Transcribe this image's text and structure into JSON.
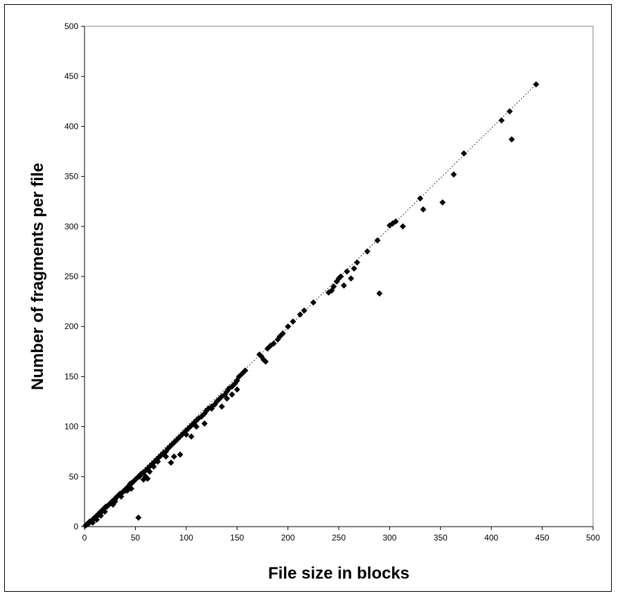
{
  "chart_data": {
    "type": "scatter",
    "title": "",
    "xlabel": "File size in blocks",
    "ylabel": "Number of fragments per file",
    "xlim": [
      0,
      500
    ],
    "ylim": [
      0,
      500
    ],
    "xticks": [
      0,
      50,
      100,
      150,
      200,
      250,
      300,
      350,
      400,
      450,
      500
    ],
    "yticks": [
      0,
      50,
      100,
      150,
      200,
      250,
      300,
      350,
      400,
      450,
      500
    ],
    "grid": false,
    "legend": "none",
    "marker_color": "#000000",
    "trendline": {
      "style": "dotted",
      "from": [
        0,
        0
      ],
      "to": [
        444,
        442
      ]
    },
    "points": [
      [
        1,
        1
      ],
      [
        2,
        2
      ],
      [
        3,
        3
      ],
      [
        4,
        3
      ],
      [
        5,
        5
      ],
      [
        6,
        5
      ],
      [
        7,
        6
      ],
      [
        8,
        7
      ],
      [
        9,
        8
      ],
      [
        10,
        9
      ],
      [
        11,
        10
      ],
      [
        12,
        11
      ],
      [
        13,
        11
      ],
      [
        14,
        12
      ],
      [
        15,
        14
      ],
      [
        16,
        15
      ],
      [
        17,
        15
      ],
      [
        18,
        17
      ],
      [
        19,
        18
      ],
      [
        20,
        19
      ],
      [
        21,
        20
      ],
      [
        22,
        20
      ],
      [
        24,
        22
      ],
      [
        25,
        23
      ],
      [
        26,
        24
      ],
      [
        27,
        25
      ],
      [
        28,
        26
      ],
      [
        30,
        27
      ],
      [
        31,
        29
      ],
      [
        32,
        30
      ],
      [
        34,
        32
      ],
      [
        35,
        33
      ],
      [
        37,
        34
      ],
      [
        38,
        35
      ],
      [
        40,
        37
      ],
      [
        41,
        38
      ],
      [
        43,
        40
      ],
      [
        44,
        41
      ],
      [
        45,
        43
      ],
      [
        47,
        44
      ],
      [
        48,
        45
      ],
      [
        50,
        47
      ],
      [
        52,
        49
      ],
      [
        54,
        50
      ],
      [
        55,
        52
      ],
      [
        56,
        53
      ],
      [
        58,
        54
      ],
      [
        60,
        56
      ],
      [
        62,
        58
      ],
      [
        64,
        60
      ],
      [
        66,
        62
      ],
      [
        68,
        64
      ],
      [
        70,
        66
      ],
      [
        72,
        68
      ],
      [
        74,
        70
      ],
      [
        76,
        72
      ],
      [
        78,
        74
      ],
      [
        80,
        75
      ],
      [
        82,
        78
      ],
      [
        84,
        80
      ],
      [
        86,
        82
      ],
      [
        88,
        84
      ],
      [
        90,
        86
      ],
      [
        92,
        88
      ],
      [
        94,
        90
      ],
      [
        96,
        92
      ],
      [
        98,
        94
      ],
      [
        100,
        96
      ],
      [
        102,
        98
      ],
      [
        104,
        100
      ],
      [
        106,
        102
      ],
      [
        108,
        104
      ],
      [
        110,
        106
      ],
      [
        112,
        108
      ],
      [
        115,
        110
      ],
      [
        118,
        113
      ],
      [
        120,
        116
      ],
      [
        122,
        118
      ],
      [
        125,
        120
      ],
      [
        128,
        122
      ],
      [
        130,
        125
      ],
      [
        132,
        127
      ],
      [
        135,
        130
      ],
      [
        138,
        132
      ],
      [
        140,
        135
      ],
      [
        142,
        138
      ],
      [
        145,
        140
      ],
      [
        148,
        143
      ],
      [
        150,
        146
      ],
      [
        152,
        150
      ],
      [
        155,
        153
      ],
      [
        158,
        156
      ],
      [
        172,
        172
      ],
      [
        174,
        170
      ],
      [
        176,
        167
      ],
      [
        178,
        165
      ],
      [
        180,
        178
      ],
      [
        183,
        181
      ],
      [
        186,
        183
      ],
      [
        190,
        187
      ],
      [
        192,
        190
      ],
      [
        195,
        193
      ],
      [
        200,
        200
      ],
      [
        205,
        205
      ],
      [
        212,
        212
      ],
      [
        216,
        216
      ],
      [
        225,
        224
      ],
      [
        240,
        234
      ],
      [
        243,
        236
      ],
      [
        245,
        240
      ],
      [
        248,
        245
      ],
      [
        250,
        248
      ],
      [
        252,
        250
      ],
      [
        255,
        241
      ],
      [
        258,
        255
      ],
      [
        262,
        248
      ],
      [
        265,
        258
      ],
      [
        268,
        264
      ],
      [
        278,
        275
      ],
      [
        288,
        286
      ],
      [
        290,
        233
      ],
      [
        300,
        301
      ],
      [
        303,
        303
      ],
      [
        306,
        305
      ],
      [
        313,
        300
      ],
      [
        330,
        328
      ],
      [
        333,
        317
      ],
      [
        352,
        324
      ],
      [
        363,
        352
      ],
      [
        373,
        373
      ],
      [
        410,
        406
      ],
      [
        418,
        415
      ],
      [
        420,
        387
      ],
      [
        444,
        442
      ],
      [
        53,
        9
      ],
      [
        58,
        47
      ],
      [
        60,
        50
      ],
      [
        62,
        48
      ],
      [
        64,
        55
      ],
      [
        68,
        60
      ],
      [
        72,
        65
      ],
      [
        80,
        70
      ],
      [
        85,
        64
      ],
      [
        88,
        70
      ],
      [
        94,
        72
      ],
      [
        100,
        92
      ],
      [
        105,
        90
      ],
      [
        110,
        100
      ],
      [
        118,
        103
      ],
      [
        125,
        118
      ],
      [
        135,
        120
      ],
      [
        140,
        128
      ],
      [
        145,
        132
      ],
      [
        150,
        137
      ],
      [
        36,
        30
      ],
      [
        42,
        36
      ],
      [
        46,
        38
      ],
      [
        20,
        15
      ],
      [
        28,
        22
      ],
      [
        12,
        7
      ],
      [
        8,
        4
      ],
      [
        16,
        11
      ],
      [
        30,
        25
      ],
      [
        40,
        36
      ]
    ]
  }
}
